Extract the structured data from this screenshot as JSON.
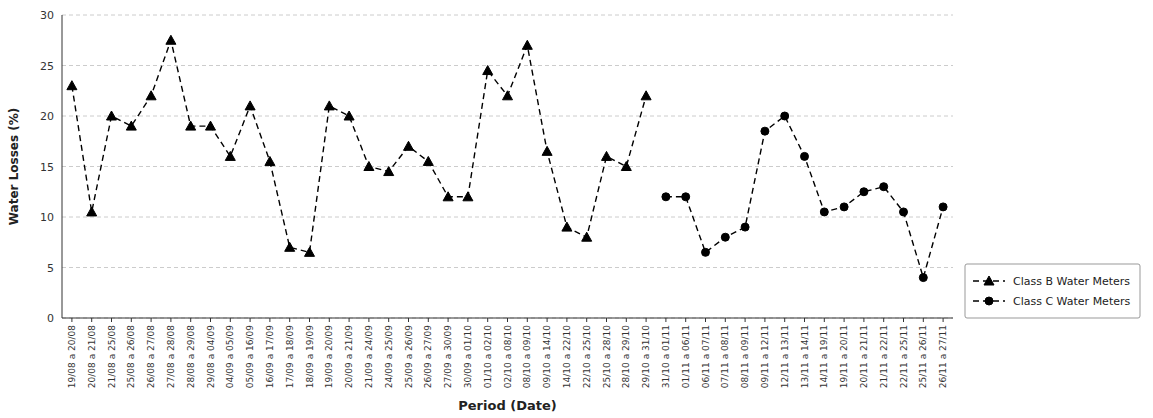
{
  "chart_data": {
    "type": "line",
    "x_label": "Period (Date)",
    "y_label": "Water Losses (%)",
    "categories": [
      "19/08 a 20/08",
      "20/08 a 21/08",
      "21/08 a 25/08",
      "25/08 a 26/08",
      "26/08 a 27/08",
      "27/08 a 28/08",
      "28/08 a 29/08",
      "29/08 a 04/09",
      "04/09 a 05/09",
      "05/09 a 16/09",
      "16/09 a 17/09",
      "17/09 a 18/09",
      "18/09 a 19/09",
      "19/09 a 20/09",
      "20/09 a 21/09",
      "21/09 a 24/09",
      "24/09 a 25/09",
      "25/09 a 26/09",
      "26/09 a 27/09",
      "27/09 a 30/09",
      "30/09 a 01/10",
      "01/10 a 02/10",
      "02/10 a 08/10",
      "08/10 a 09/10",
      "09/10 a 14/10",
      "14/10 a 22/10",
      "22/10 a 25/10",
      "25/10 a 28/10",
      "28/10 a 29/10",
      "29/10 a 31/10",
      "31/10 a 01/11",
      "01/11 a 06/11",
      "06/11 a 07/11",
      "07/11 a 08/11",
      "08/11 a 09/11",
      "09/11 a 12/11",
      "12/11 a 13/11",
      "13/11 a 14/11",
      "14/11 a 19/11",
      "19/11 a 20/11",
      "20/11 a 21/11",
      "21/11 a 22/11",
      "22/11 a 25/11",
      "25/11 a 26/11",
      "26/11 a 27/11"
    ],
    "series": [
      {
        "name": "Class B Water Meters",
        "color": "#000000",
        "marker": "triangle",
        "line_style": "dashed",
        "values": [
          23,
          10.5,
          20,
          19,
          22,
          27.5,
          19,
          19,
          16,
          21,
          15.5,
          7,
          6.5,
          21,
          20,
          15,
          14.5,
          17,
          15.5,
          12,
          12,
          24.5,
          22,
          27,
          16.5,
          9,
          8,
          16,
          15,
          22,
          null,
          null,
          null,
          null,
          null,
          null,
          null,
          null,
          null,
          null,
          null,
          null,
          null,
          null,
          null
        ]
      },
      {
        "name": "Class C Water Meters",
        "color": "#000000",
        "marker": "circle",
        "line_style": "dashed",
        "values": [
          null,
          null,
          null,
          null,
          null,
          null,
          null,
          null,
          null,
          null,
          null,
          null,
          null,
          null,
          null,
          null,
          null,
          null,
          null,
          null,
          null,
          null,
          null,
          null,
          null,
          null,
          null,
          null,
          null,
          null,
          12,
          12,
          6.5,
          8,
          9,
          18.5,
          20,
          16,
          10.5,
          11,
          12.5,
          13,
          10.5,
          4,
          11
        ]
      }
    ],
    "ylim": [
      0,
      30
    ],
    "yticks": [
      0,
      5,
      10,
      15,
      20,
      25,
      30
    ],
    "grid": true,
    "legend": "lower right"
  }
}
